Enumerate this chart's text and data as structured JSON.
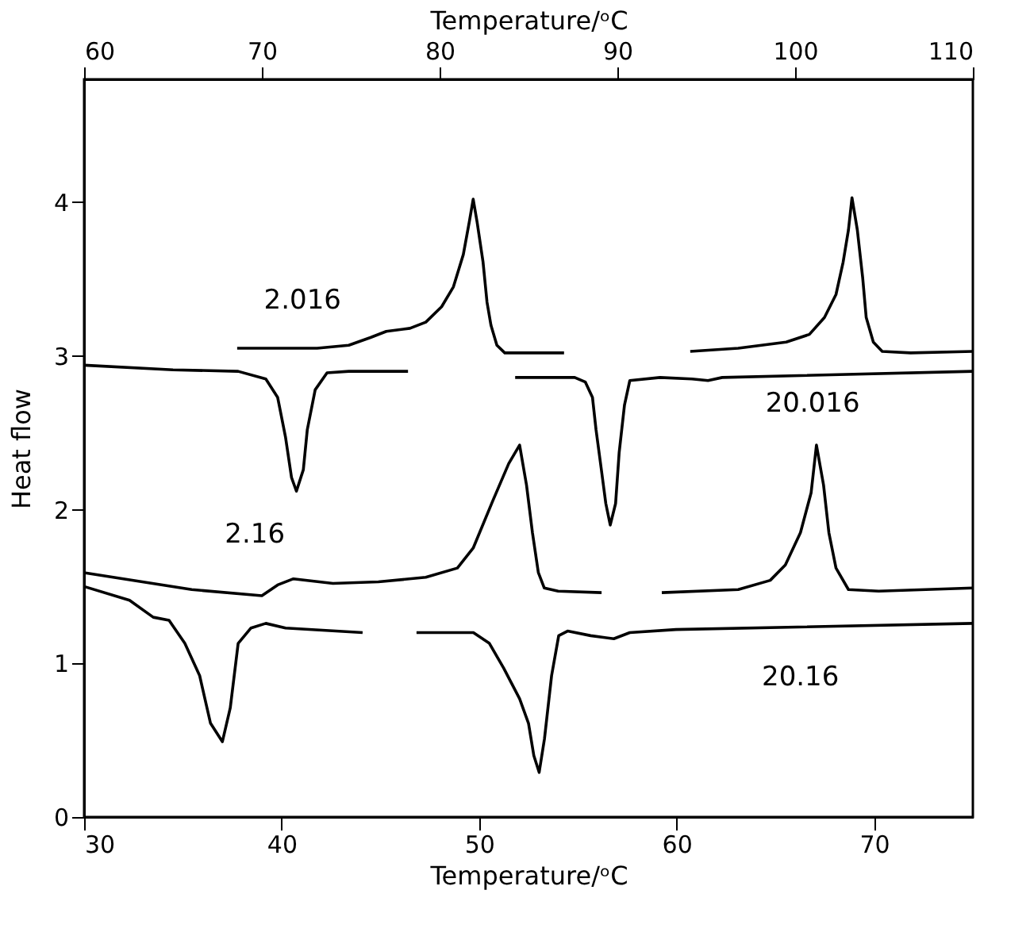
{
  "chart_data": {
    "type": "line",
    "xlabel": "Temperature/ᵒC",
    "x2label": "Temperature/ᵒC",
    "ylabel": "Heat flow",
    "xlim": [
      30,
      75
    ],
    "xticks": [
      30,
      40,
      50,
      60,
      70
    ],
    "x2lim": [
      60,
      110
    ],
    "x2ticks": [
      60,
      70,
      80,
      90,
      100,
      110
    ],
    "ylim": [
      0,
      4.8
    ],
    "yticks": [
      0,
      1,
      2,
      3,
      4
    ],
    "grid": false,
    "line_style": "solid",
    "series": [
      {
        "name": "2.016",
        "color": "#000000",
        "x": [
          37.75,
          41.8,
          43.4,
          44.5,
          45.3,
          46.5,
          47.3,
          48.1,
          48.7,
          49.2,
          49.5,
          49.7,
          49.9,
          50.2,
          50.4,
          50.6,
          50.9,
          51.3,
          54.3
        ],
        "values": [
          3.05,
          3.05,
          3.07,
          3.12,
          3.16,
          3.18,
          3.22,
          3.32,
          3.45,
          3.66,
          3.87,
          4.02,
          3.87,
          3.61,
          3.35,
          3.2,
          3.07,
          3.02,
          3.02
        ]
      },
      {
        "color": "#000000",
        "x": [
          30,
          34.5,
          37.8,
          39.2,
          39.8,
          40.2,
          40.5,
          40.75,
          41.1,
          41.3,
          41.7,
          42.3,
          43.4,
          46.4
        ],
        "values": [
          2.94,
          2.91,
          2.9,
          2.85,
          2.73,
          2.47,
          2.21,
          2.12,
          2.26,
          2.52,
          2.78,
          2.89,
          2.9,
          2.9
        ]
      },
      {
        "name": "20.016",
        "color": "#000000",
        "axis": "x2",
        "x": [
          84.25,
          87.6,
          88.2,
          88.6,
          88.8,
          89.1,
          89.35,
          89.6,
          89.9,
          90.1,
          90.4,
          90.7,
          92.4,
          94.2,
          95.1,
          95.9,
          110
        ],
        "values": [
          2.86,
          2.86,
          2.83,
          2.73,
          2.52,
          2.26,
          2.04,
          1.9,
          2.04,
          2.37,
          2.68,
          2.84,
          2.86,
          2.85,
          2.84,
          2.86,
          2.9
        ]
      },
      {
        "color": "#000000",
        "axis": "x2",
        "x": [
          94.1,
          96.8,
          99.5,
          100.8,
          101.65,
          102.3,
          102.7,
          103.0,
          103.2,
          103.5,
          103.8,
          104.0,
          104.4,
          104.9,
          106.5,
          110
        ],
        "values": [
          3.03,
          3.05,
          3.09,
          3.14,
          3.25,
          3.4,
          3.61,
          3.82,
          4.03,
          3.82,
          3.51,
          3.25,
          3.09,
          3.03,
          3.02,
          3.03
        ]
      },
      {
        "name": "2.16",
        "color": "#000000",
        "x": [
          30,
          35.45,
          39.0,
          39.8,
          40.6,
          42.6,
          44.9,
          47.3,
          48.9,
          49.7,
          50.7,
          51.5,
          52.05,
          52.4,
          52.7,
          53.0,
          53.3,
          54.0,
          56.2
        ],
        "values": [
          1.59,
          1.48,
          1.44,
          1.51,
          1.55,
          1.52,
          1.53,
          1.56,
          1.62,
          1.75,
          2.06,
          2.3,
          2.42,
          2.16,
          1.85,
          1.59,
          1.49,
          1.47,
          1.46
        ]
      },
      {
        "color": "#000000",
        "axis": "x2",
        "x": [
          92.5,
          96.8,
          98.6,
          99.45,
          100.3,
          100.9,
          101.2,
          101.6,
          101.9,
          102.3,
          103.0,
          104.7,
          110
        ],
        "values": [
          1.46,
          1.48,
          1.54,
          1.64,
          1.85,
          2.11,
          2.42,
          2.16,
          1.85,
          1.62,
          1.48,
          1.47,
          1.49
        ]
      },
      {
        "color": "#000000",
        "x": [
          30,
          32.3,
          33.5,
          34.3,
          35.1,
          35.85,
          36.4,
          37.0,
          37.4,
          37.8,
          38.45,
          39.2,
          40.2,
          44.1
        ],
        "values": [
          1.5,
          1.41,
          1.3,
          1.28,
          1.13,
          0.92,
          0.61,
          0.49,
          0.71,
          1.13,
          1.23,
          1.26,
          1.23,
          1.2
        ]
      },
      {
        "name": "20.16",
        "color": "#000000",
        "axis": "x2",
        "x": [
          78.7,
          81.9,
          82.8,
          83.6,
          84.5,
          85.0,
          85.3,
          85.6,
          85.9,
          86.3,
          86.7,
          87.2,
          88.5,
          89.8,
          90.7,
          93.3,
          110
        ],
        "values": [
          1.2,
          1.2,
          1.13,
          0.97,
          0.77,
          0.61,
          0.4,
          0.29,
          0.51,
          0.92,
          1.18,
          1.21,
          1.18,
          1.16,
          1.2,
          1.22,
          1.26
        ]
      }
    ],
    "legend": false
  }
}
